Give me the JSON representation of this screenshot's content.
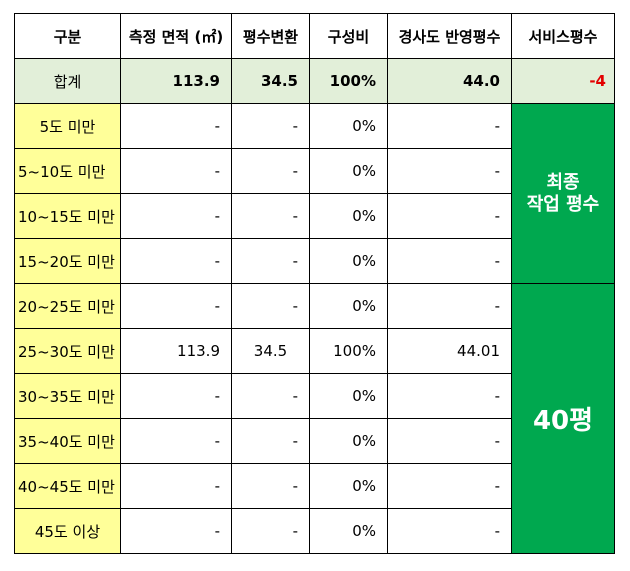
{
  "headers": {
    "category": "구분",
    "area": "측정 면적 (㎡)",
    "pyeong": "평수변환",
    "ratio": "구성비",
    "slope_pyeong": "경사도 반영평수",
    "service": "서비스평수"
  },
  "total": {
    "label": "합계",
    "area": "113.9",
    "pyeong": "34.5",
    "ratio": "100%",
    "slope_pyeong": "44.0",
    "service": "-4"
  },
  "rows": [
    {
      "label": "5도 미만",
      "area": "-",
      "pyeong": "-",
      "ratio": "0%",
      "slope_pyeong": "-"
    },
    {
      "label": "5~10도 미만",
      "area": "-",
      "pyeong": "-",
      "ratio": "0%",
      "slope_pyeong": "-"
    },
    {
      "label": "10~15도 미만",
      "area": "-",
      "pyeong": "-",
      "ratio": "0%",
      "slope_pyeong": "-"
    },
    {
      "label": "15~20도 미만",
      "area": "-",
      "pyeong": "-",
      "ratio": "0%",
      "slope_pyeong": "-"
    },
    {
      "label": "20~25도 미만",
      "area": "-",
      "pyeong": "-",
      "ratio": "0%",
      "slope_pyeong": "-"
    },
    {
      "label": "25~30도 미만",
      "area": "113.9",
      "pyeong": "34.5",
      "ratio": "100%",
      "slope_pyeong": "44.01"
    },
    {
      "label": "30~35도 미만",
      "area": "-",
      "pyeong": "-",
      "ratio": "0%",
      "slope_pyeong": "-"
    },
    {
      "label": "35~40도 미만",
      "area": "-",
      "pyeong": "-",
      "ratio": "0%",
      "slope_pyeong": "-"
    },
    {
      "label": "40~45도 미만",
      "area": "-",
      "pyeong": "-",
      "ratio": "0%",
      "slope_pyeong": "-"
    },
    {
      "label": "45도 이상",
      "area": "-",
      "pyeong": "-",
      "ratio": "0%",
      "slope_pyeong": "-"
    }
  ],
  "final_work": {
    "label_line1": "최종",
    "label_line2": "작업 평수",
    "value": "40평"
  },
  "colors": {
    "total_row_bg": "#e2efd9",
    "range_label_bg": "#ffff99",
    "green_block_bg": "#00a84f",
    "negative_text": "#e30000"
  }
}
